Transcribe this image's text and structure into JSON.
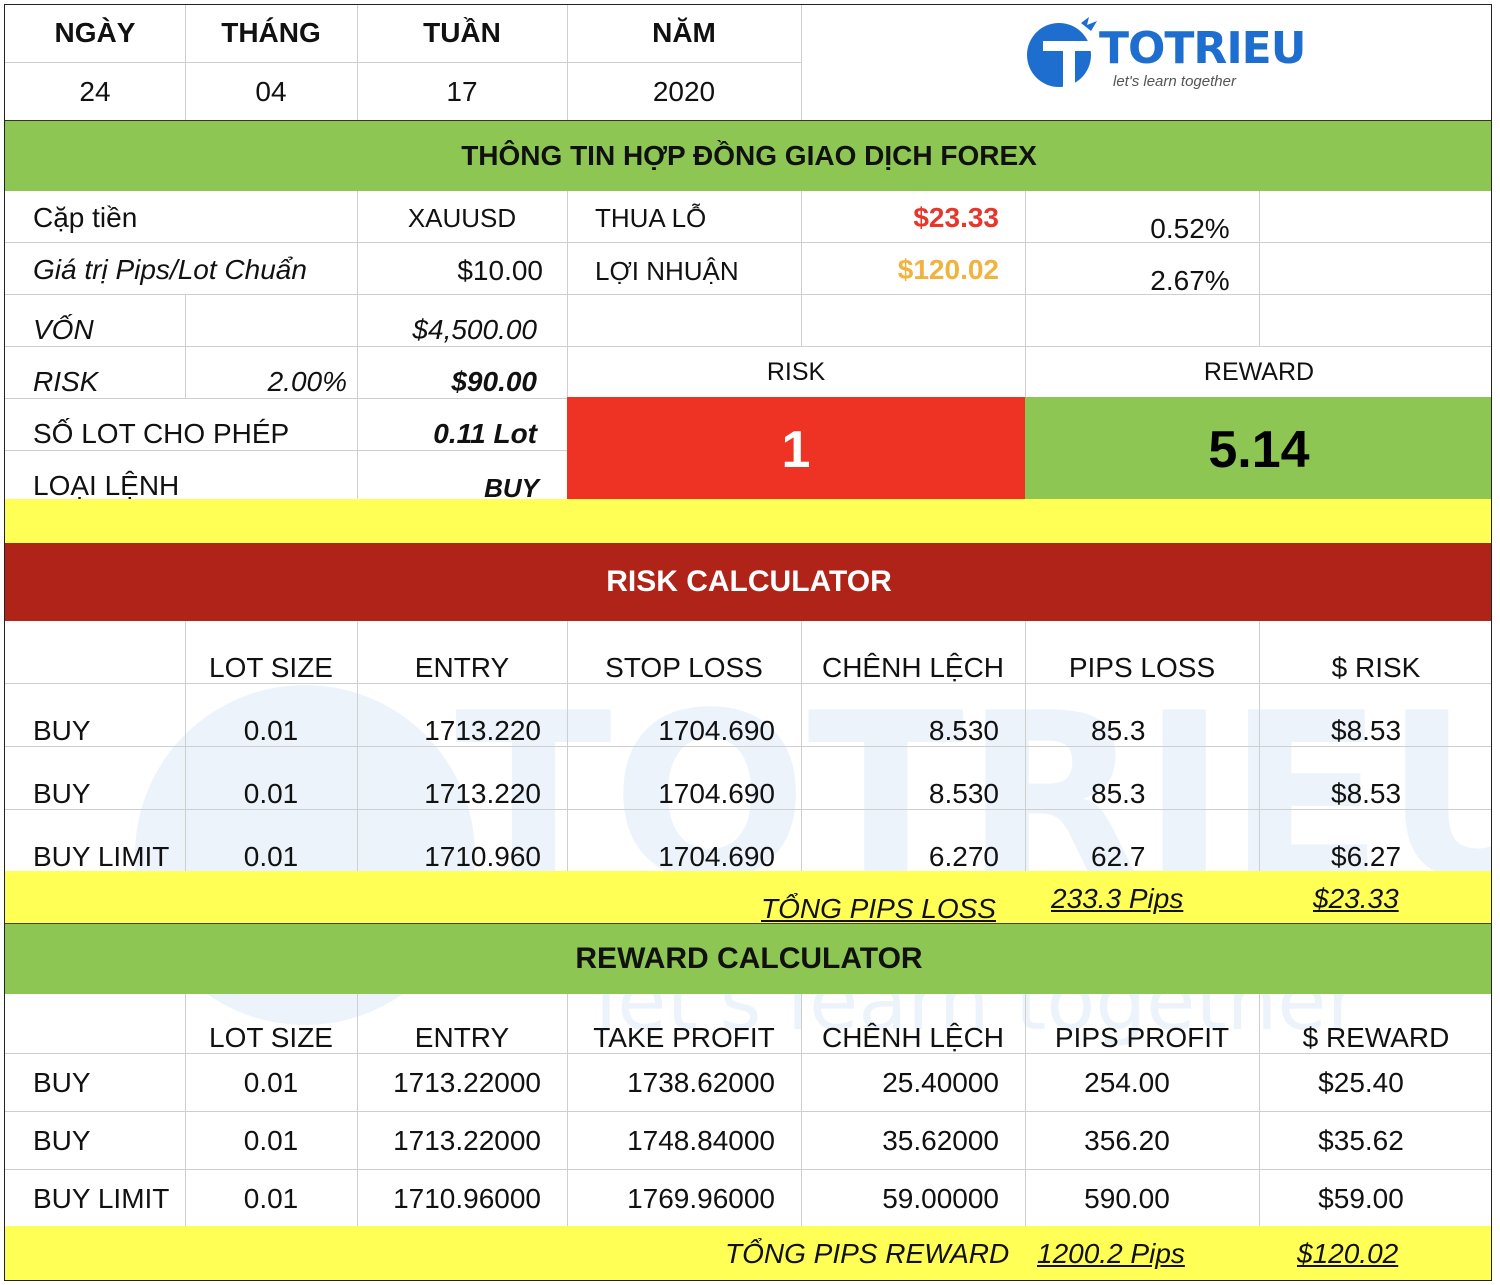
{
  "date_headers": [
    "NGÀY",
    "THÁNG",
    "TUẦN",
    "NĂM"
  ],
  "date_values": [
    "24",
    "04",
    "17",
    "2020"
  ],
  "logo": {
    "text": "TOTRIEU",
    "tagline": "let's learn together"
  },
  "contract": {
    "title": "THÔNG TIN HỢP ĐỒNG GIAO DỊCH FOREX",
    "pair_label": "Cặp tiền",
    "pair_value": "XAUUSD",
    "pip_label": "Giá trị Pips/Lot Chuẩn",
    "pip_value": "$10.00",
    "loss_label": "THUA LỖ",
    "loss_value": "$23.33",
    "loss_pct": "0.52%",
    "profit_label": "LỢI NHUẬN",
    "profit_value": "$120.02",
    "profit_pct": "2.67%",
    "capital_label": "VỐN",
    "capital_value": "$4,500.00",
    "risk_label": "RISK",
    "risk_pct": "2.00%",
    "risk_value": "$90.00",
    "lot_label": "SỐ LOT CHO PHÉP",
    "lot_value": "0.11 Lot",
    "order_label": "LOẠI LỆNH",
    "order_value": "BUY",
    "rr_risk_label": "RISK",
    "rr_reward_label": "REWARD",
    "rr_risk_value": "1",
    "rr_reward_value": "5.14"
  },
  "risk_calc": {
    "title": "RISK CALCULATOR",
    "headers": [
      "LOT SIZE",
      "ENTRY",
      "STOP LOSS",
      "CHÊNH LỆCH",
      "PIPS LOSS",
      "$ RISK"
    ],
    "rows": [
      [
        "BUY",
        "0.01",
        "1713.220",
        "1704.690",
        "8.530",
        "85.3",
        "$8.53"
      ],
      [
        "BUY",
        "0.01",
        "1713.220",
        "1704.690",
        "8.530",
        "85.3",
        "$8.53"
      ],
      [
        "BUY LIMIT",
        "0.01",
        "1710.960",
        "1704.690",
        "6.270",
        "62.7",
        "$6.27"
      ]
    ],
    "total_label": "TỔNG PIPS LOSS",
    "total_pips": "233.3 Pips",
    "total_amount": "$23.33"
  },
  "reward_calc": {
    "title": "REWARD CALCULATOR",
    "headers": [
      "LOT SIZE",
      "ENTRY",
      "TAKE PROFIT",
      "CHÊNH LỆCH",
      "PIPS PROFIT",
      "$ REWARD"
    ],
    "rows": [
      [
        "BUY",
        "0.01",
        "1713.22000",
        "1738.62000",
        "25.40000",
        "254.00",
        "$25.40"
      ],
      [
        "BUY",
        "0.01",
        "1713.22000",
        "1748.84000",
        "35.62000",
        "356.20",
        "$35.62"
      ],
      [
        "BUY LIMIT",
        "0.01",
        "1710.96000",
        "1769.96000",
        "59.00000",
        "590.00",
        "$59.00"
      ]
    ],
    "total_label": "TỔNG PIPS REWARD",
    "total_pips": "1200.2 Pips",
    "total_amount": "$120.02"
  },
  "colors": {
    "green": "#8dc653",
    "red_band": "#b02318",
    "red_cell": "#ee3325",
    "yellow": "#ffff55",
    "loss_text": "#e8372a",
    "profit_text": "#f2b33d",
    "logo_blue": "#1d6ecf"
  }
}
